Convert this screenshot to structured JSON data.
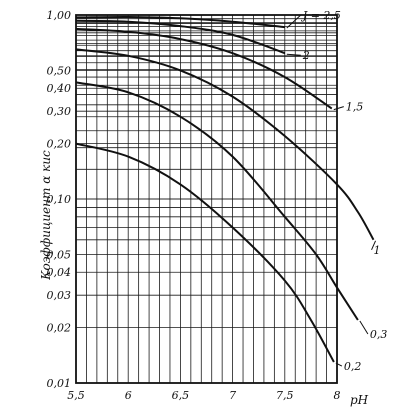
{
  "chart_data": {
    "type": "line",
    "title": "",
    "xlabel": "pH",
    "ylabel": "Коэффициент α кис",
    "xlim": [
      5.5,
      8.0
    ],
    "ylim": [
      0.01,
      1.0
    ],
    "y_scale": "log",
    "grid": true,
    "x_ticks": [
      5.5,
      6,
      6.5,
      7,
      7.5,
      8
    ],
    "x_tick_labels": [
      "5,5",
      "6",
      "6,5",
      "7",
      "7,5",
      "8"
    ],
    "y_ticks": [
      0.01,
      0.02,
      0.03,
      0.04,
      0.05,
      0.1,
      0.2,
      0.3,
      0.4,
      0.5,
      1.0
    ],
    "y_tick_labels": [
      "0,01",
      "0,02",
      "0,03",
      "0,04",
      "0,05",
      "0,10",
      "0,20",
      "0,30",
      "0,40",
      "0,50",
      "1,00"
    ],
    "series": [
      {
        "name": "J = 2,5",
        "label": "J = 2,5",
        "x": [
          5.5,
          6.0,
          6.5,
          7.0,
          7.5
        ],
        "y": [
          0.97,
          0.975,
          0.96,
          0.92,
          0.86
        ]
      },
      {
        "name": "2",
        "label": "2",
        "x": [
          5.5,
          6.0,
          6.5,
          7.0,
          7.5
        ],
        "y": [
          0.93,
          0.92,
          0.87,
          0.78,
          0.62
        ]
      },
      {
        "name": "1,5",
        "label": "1,5",
        "x": [
          5.5,
          6.0,
          6.5,
          7.0,
          7.5,
          7.95
        ],
        "y": [
          0.84,
          0.81,
          0.74,
          0.62,
          0.46,
          0.31
        ]
      },
      {
        "name": "1",
        "label": "1",
        "x": [
          5.5,
          6.0,
          6.5,
          7.0,
          7.5,
          8.0,
          8.2,
          8.35
        ],
        "y": [
          0.65,
          0.6,
          0.5,
          0.36,
          0.22,
          0.12,
          0.085,
          0.06
        ]
      },
      {
        "name": "0,3",
        "label": "0,3",
        "x": [
          5.5,
          6.0,
          6.5,
          7.0,
          7.5,
          7.8,
          8.0,
          8.2
        ],
        "y": [
          0.43,
          0.38,
          0.28,
          0.17,
          0.08,
          0.05,
          0.033,
          0.022
        ]
      },
      {
        "name": "0,2",
        "label": "0,2",
        "x": [
          5.5,
          6.0,
          6.5,
          7.0,
          7.5,
          7.75,
          7.97
        ],
        "y": [
          0.2,
          0.17,
          0.12,
          0.07,
          0.036,
          0.022,
          0.013
        ]
      }
    ]
  }
}
